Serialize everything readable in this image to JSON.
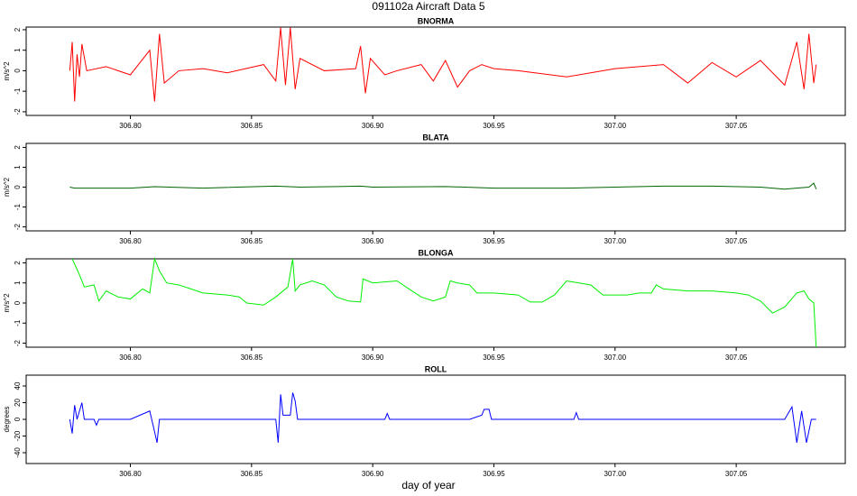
{
  "title": "091102a   Aircraft Data 5",
  "x_label": "day of year",
  "chart_data": [
    {
      "type": "line",
      "title": "BNORMA",
      "y_label": "m/s^2",
      "xlim": [
        306.757,
        307.095
      ],
      "ylim": [
        -2.18,
        2.13
      ],
      "xticks": [
        {
          "value": 306.8,
          "label": "306.80"
        },
        {
          "value": 306.85,
          "label": "306.85"
        },
        {
          "value": 306.9,
          "label": "306.90"
        },
        {
          "value": 306.95,
          "label": "306.95"
        },
        {
          "value": 307.0,
          "label": "307.00"
        },
        {
          "value": 307.05,
          "label": "307.05"
        }
      ],
      "yticks": [
        -2,
        -1,
        0,
        1,
        2
      ],
      "series": [
        {
          "name": "BNORMA",
          "color": "#ff0000",
          "x": [
            306.775,
            306.776,
            306.777,
            306.778,
            306.779,
            306.78,
            306.782,
            306.79,
            306.8,
            306.808,
            306.81,
            306.812,
            306.814,
            306.82,
            306.83,
            306.84,
            306.855,
            306.86,
            306.862,
            306.864,
            306.866,
            306.868,
            306.87,
            306.88,
            306.893,
            306.895,
            306.897,
            306.899,
            306.905,
            306.91,
            306.92,
            306.925,
            306.93,
            306.935,
            306.94,
            306.945,
            306.95,
            306.96,
            306.98,
            307.0,
            307.02,
            307.03,
            307.04,
            307.05,
            307.06,
            307.07,
            307.075,
            307.078,
            307.08,
            307.082,
            307.083
          ],
          "values": [
            0,
            1.4,
            -1.5,
            0.8,
            -0.3,
            1.3,
            0,
            0.2,
            -0.2,
            1.0,
            -1.5,
            1.8,
            -0.6,
            0,
            0.1,
            -0.1,
            0.3,
            -0.5,
            2.1,
            -0.7,
            2.1,
            -0.9,
            0.6,
            0,
            0.1,
            1.2,
            -1.1,
            0.6,
            -0.2,
            0,
            0.3,
            -0.5,
            0.5,
            -0.8,
            0,
            0.3,
            0.1,
            0,
            -0.3,
            0.1,
            0.3,
            -0.6,
            0.4,
            -0.3,
            0.5,
            -0.7,
            1.4,
            -0.9,
            1.8,
            -0.6,
            0.3
          ]
        }
      ]
    },
    {
      "type": "line",
      "title": "BLATA",
      "y_label": "m/s^2",
      "xlim": [
        306.757,
        307.095
      ],
      "ylim": [
        -2.2,
        2.2
      ],
      "xticks": [
        {
          "value": 306.8,
          "label": "306.80"
        },
        {
          "value": 306.85,
          "label": "306.85"
        },
        {
          "value": 306.9,
          "label": "306.90"
        },
        {
          "value": 306.95,
          "label": "306.95"
        },
        {
          "value": 307.0,
          "label": "307.00"
        },
        {
          "value": 307.05,
          "label": "307.05"
        }
      ],
      "yticks": [
        -2,
        -1,
        0,
        1,
        2
      ],
      "series": [
        {
          "name": "BLATA",
          "color": "#006400",
          "x": [
            306.775,
            306.777,
            306.8,
            306.81,
            306.83,
            306.86,
            306.87,
            306.895,
            306.9,
            306.93,
            306.95,
            306.98,
            307.0,
            307.02,
            307.04,
            307.06,
            307.07,
            307.08,
            307.082,
            307.083
          ],
          "values": [
            0,
            -0.05,
            -0.05,
            0.02,
            -0.05,
            0.05,
            0,
            0.05,
            0,
            0.03,
            -0.05,
            -0.05,
            0,
            0.05,
            0.05,
            0,
            -0.1,
            0,
            0.2,
            -0.1
          ]
        }
      ]
    },
    {
      "type": "line",
      "title": "BLONGA",
      "y_label": "m/s^2",
      "xlim": [
        306.757,
        307.095
      ],
      "ylim": [
        -2.2,
        2.2
      ],
      "xticks": [
        {
          "value": 306.8,
          "label": "306.80"
        },
        {
          "value": 306.85,
          "label": "306.85"
        },
        {
          "value": 306.9,
          "label": "306.90"
        },
        {
          "value": 306.95,
          "label": "306.95"
        },
        {
          "value": 307.0,
          "label": "307.00"
        },
        {
          "value": 307.05,
          "label": "307.05"
        }
      ],
      "yticks": [
        -2,
        -1,
        0,
        1,
        2
      ],
      "series": [
        {
          "name": "BLONGA",
          "color": "#00ee00",
          "x": [
            306.776,
            306.779,
            306.781,
            306.785,
            306.787,
            306.79,
            306.795,
            306.8,
            306.805,
            306.808,
            306.81,
            306.812,
            306.815,
            306.82,
            306.825,
            306.83,
            306.84,
            306.845,
            306.848,
            306.855,
            306.86,
            306.865,
            306.867,
            306.868,
            306.87,
            306.875,
            306.88,
            306.885,
            306.89,
            306.895,
            306.896,
            306.9,
            306.91,
            306.915,
            306.92,
            306.925,
            306.93,
            306.932,
            306.935,
            306.94,
            306.943,
            306.95,
            306.96,
            306.965,
            306.97,
            306.975,
            306.98,
            306.99,
            306.995,
            307.0,
            307.005,
            307.01,
            307.015,
            307.017,
            307.02,
            307.03,
            307.04,
            307.05,
            307.055,
            307.06,
            307.065,
            307.07,
            307.075,
            307.078,
            307.08,
            307.082,
            307.083
          ],
          "values": [
            2.2,
            1.4,
            0.8,
            0.9,
            0.1,
            0.6,
            0.3,
            0.2,
            0.7,
            0.5,
            2.2,
            1.6,
            1.0,
            0.9,
            0.7,
            0.5,
            0.4,
            0.3,
            0,
            -0.1,
            0.3,
            0.8,
            2.2,
            0.6,
            0.9,
            1.1,
            0.9,
            0.3,
            0.1,
            0.05,
            1.2,
            1.0,
            1.1,
            0.7,
            0.3,
            0.1,
            0.3,
            1.1,
            1.0,
            0.9,
            0.5,
            0.5,
            0.4,
            0.05,
            0.05,
            0.4,
            1.1,
            0.9,
            0.4,
            0.4,
            0.4,
            0.5,
            0.5,
            0.9,
            0.7,
            0.6,
            0.6,
            0.5,
            0.4,
            0.1,
            -0.5,
            -0.2,
            0.5,
            0.6,
            0.2,
            0,
            -2.2
          ]
        }
      ]
    },
    {
      "type": "line",
      "title": "ROLL",
      "y_label": "degrees",
      "xlim": [
        306.757,
        307.095
      ],
      "ylim": [
        -53,
        53
      ],
      "xticks": [
        {
          "value": 306.8,
          "label": "306.80"
        },
        {
          "value": 306.85,
          "label": "306.85"
        },
        {
          "value": 306.9,
          "label": "306.90"
        },
        {
          "value": 306.95,
          "label": "306.95"
        },
        {
          "value": 307.0,
          "label": "307.00"
        },
        {
          "value": 307.05,
          "label": "307.05"
        }
      ],
      "yticks": [
        -40,
        -20,
        0,
        20,
        40
      ],
      "series": [
        {
          "name": "ROLL",
          "color": "#0000ff",
          "x": [
            306.775,
            306.776,
            306.777,
            306.778,
            306.78,
            306.781,
            306.785,
            306.786,
            306.787,
            306.8,
            306.808,
            306.81,
            306.811,
            306.812,
            306.83,
            306.86,
            306.861,
            306.862,
            306.863,
            306.866,
            306.867,
            306.868,
            306.869,
            306.9,
            306.905,
            306.906,
            306.907,
            306.94,
            306.945,
            306.946,
            306.948,
            306.949,
            306.983,
            306.984,
            306.985,
            307.0,
            307.07,
            307.073,
            307.075,
            307.077,
            307.079,
            307.081,
            307.083
          ],
          "values": [
            0,
            -17,
            17,
            0,
            20,
            0,
            0,
            -7,
            0,
            0,
            10,
            -15,
            -28,
            0,
            0,
            0,
            -28,
            30,
            5,
            5,
            32,
            22,
            0,
            0,
            0,
            7,
            0,
            0,
            5,
            12,
            12,
            0,
            0,
            8,
            0,
            0,
            0,
            15,
            -28,
            10,
            -28,
            0,
            0
          ]
        }
      ]
    }
  ]
}
